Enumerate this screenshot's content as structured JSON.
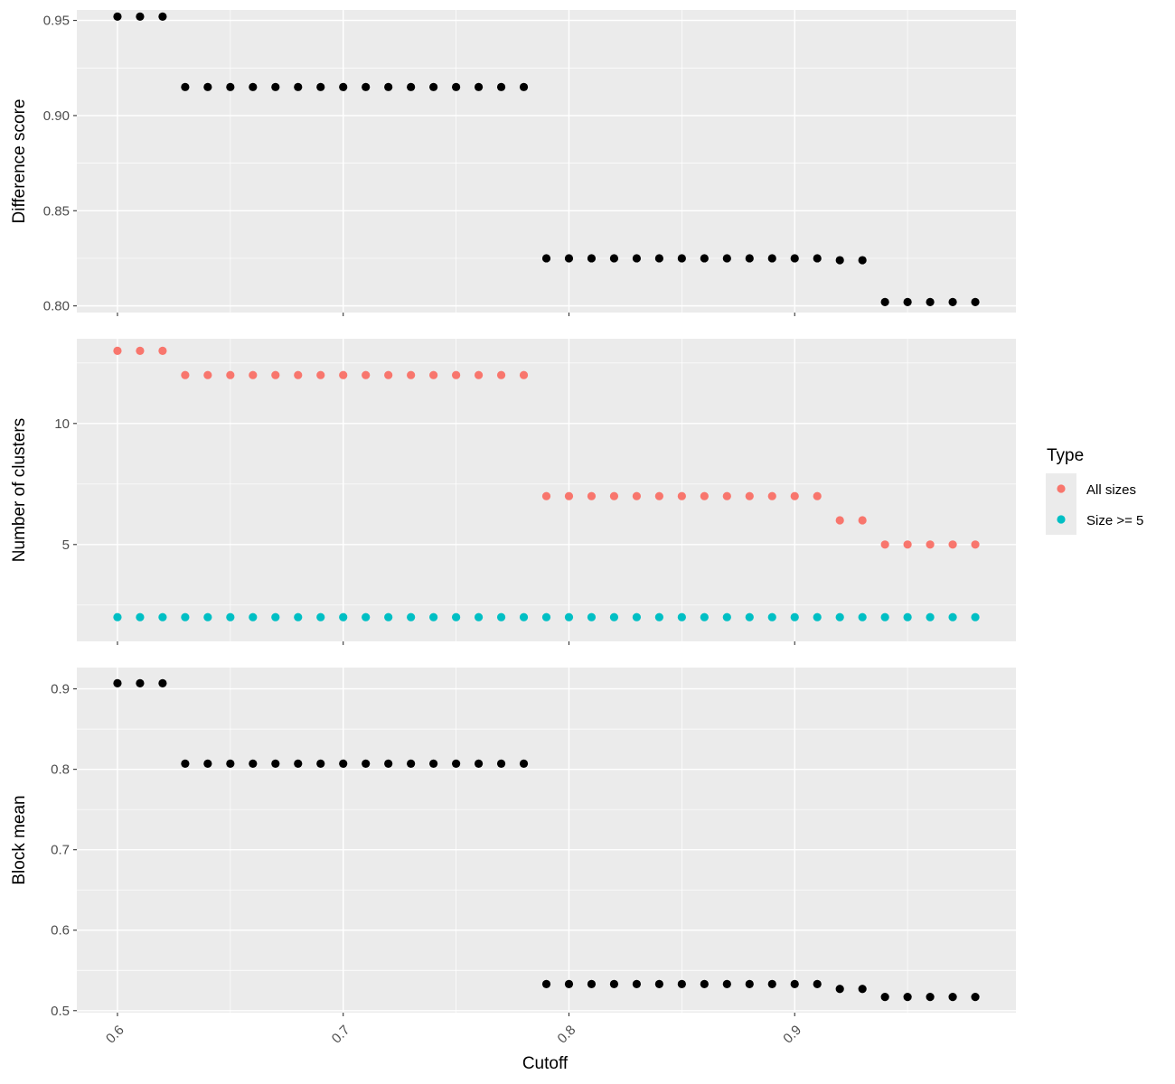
{
  "chart_data": {
    "type": "scatter",
    "layout": "faceted-vertical",
    "xlabel": "Cutoff",
    "x_ticks": [
      0.6,
      0.7,
      0.8,
      0.9
    ],
    "x_tick_labels": [
      "0.6",
      "0.7",
      "0.8",
      "0.9"
    ],
    "xlim": [
      0.582,
      0.998
    ],
    "x": [
      0.6,
      0.61,
      0.62,
      0.63,
      0.64,
      0.65,
      0.66,
      0.67,
      0.68,
      0.69,
      0.7,
      0.71,
      0.72,
      0.73,
      0.74,
      0.75,
      0.76,
      0.77,
      0.78,
      0.79,
      0.8,
      0.81,
      0.82,
      0.83,
      0.84,
      0.85,
      0.86,
      0.87,
      0.88,
      0.89,
      0.9,
      0.91,
      0.92,
      0.93,
      0.94,
      0.95,
      0.96,
      0.97,
      0.98
    ],
    "grid": true,
    "legend": {
      "title": "Type",
      "position": "right",
      "entries": [
        {
          "label": "All sizes",
          "color": "#F8766D"
        },
        {
          "label": "Size >= 5",
          "color": "#00BFC4"
        }
      ]
    },
    "panels": [
      {
        "ylabel": "Difference score",
        "ylim": [
          0.7965,
          0.9555
        ],
        "y_ticks": [
          0.8,
          0.85,
          0.9,
          0.95
        ],
        "y_tick_labels": [
          "0.80",
          "0.85",
          "0.90",
          "0.95"
        ],
        "y_minor": [
          0.825,
          0.875,
          0.925
        ],
        "series": [
          {
            "color": "#000000",
            "values": [
              0.952,
              0.952,
              0.952,
              0.915,
              0.915,
              0.915,
              0.915,
              0.915,
              0.915,
              0.915,
              0.915,
              0.915,
              0.915,
              0.915,
              0.915,
              0.915,
              0.915,
              0.915,
              0.915,
              0.825,
              0.825,
              0.825,
              0.825,
              0.825,
              0.825,
              0.825,
              0.825,
              0.825,
              0.825,
              0.825,
              0.825,
              0.825,
              0.824,
              0.824,
              0.802,
              0.802,
              0.802,
              0.802,
              0.802
            ]
          }
        ]
      },
      {
        "ylabel": "Number of clusters",
        "ylim": [
          1.0,
          13.5
        ],
        "y_ticks": [
          5,
          10
        ],
        "y_tick_labels": [
          "5",
          "10"
        ],
        "y_minor": [
          2.5,
          7.5,
          12.5
        ],
        "series": [
          {
            "name": "All sizes",
            "color": "#F8766D",
            "values": [
              13,
              13,
              13,
              12,
              12,
              12,
              12,
              12,
              12,
              12,
              12,
              12,
              12,
              12,
              12,
              12,
              12,
              12,
              12,
              7,
              7,
              7,
              7,
              7,
              7,
              7,
              7,
              7,
              7,
              7,
              7,
              7,
              6,
              6,
              5,
              5,
              5,
              5,
              5
            ]
          },
          {
            "name": "Size >= 5",
            "color": "#00BFC4",
            "values": [
              2,
              2,
              2,
              2,
              2,
              2,
              2,
              2,
              2,
              2,
              2,
              2,
              2,
              2,
              2,
              2,
              2,
              2,
              2,
              2,
              2,
              2,
              2,
              2,
              2,
              2,
              2,
              2,
              2,
              2,
              2,
              2,
              2,
              2,
              2,
              2,
              2,
              2,
              2
            ]
          }
        ]
      },
      {
        "ylabel": "Block mean",
        "ylim": [
          0.4975,
          0.9265
        ],
        "y_ticks": [
          0.5,
          0.6,
          0.7,
          0.8,
          0.9
        ],
        "y_tick_labels": [
          "0.5",
          "0.6",
          "0.7",
          "0.8",
          "0.9"
        ],
        "y_minor": [
          0.55,
          0.65,
          0.75,
          0.85
        ],
        "series": [
          {
            "color": "#000000",
            "values": [
              0.907,
              0.907,
              0.907,
              0.807,
              0.807,
              0.807,
              0.807,
              0.807,
              0.807,
              0.807,
              0.807,
              0.807,
              0.807,
              0.807,
              0.807,
              0.807,
              0.807,
              0.807,
              0.807,
              0.533,
              0.533,
              0.533,
              0.533,
              0.533,
              0.533,
              0.533,
              0.533,
              0.533,
              0.533,
              0.533,
              0.533,
              0.533,
              0.527,
              0.527,
              0.517,
              0.517,
              0.517,
              0.517,
              0.517
            ]
          }
        ]
      }
    ]
  }
}
